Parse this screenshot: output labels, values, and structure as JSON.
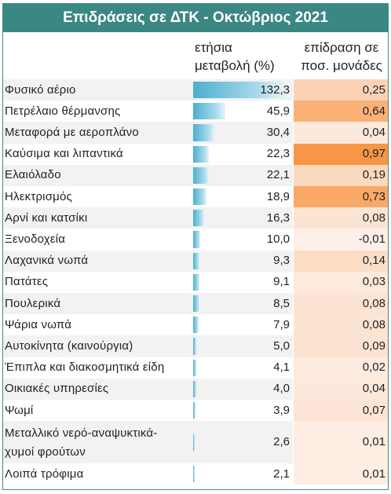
{
  "title": "Επιδράσεις σε ΔΤΚ - Οκτώβριος 2021",
  "columns": {
    "change": [
      "ετήσια",
      "μεταβολή (%)"
    ],
    "impact": [
      "επίδραση σε",
      "ποσ. μονάδες"
    ]
  },
  "colors": {
    "title_bg": "#3a8783",
    "bar": "#4bb0cf",
    "impact_low": "#fdeee4",
    "impact_high": "#f79646"
  },
  "chart_data": {
    "type": "table",
    "title": "Επιδράσεις σε ΔΤΚ - Οκτώβριος 2021",
    "columns": [
      "ετήσια μεταβολή (%)",
      "επίδραση σε ποσ. μονάδες"
    ],
    "rows": [
      {
        "label": "Φυσικό αέριο",
        "change": 132.3,
        "change_text": "132,3",
        "impact": 0.25,
        "impact_text": "0,25"
      },
      {
        "label": "Πετρέλαιο θέρμανσης",
        "change": 45.9,
        "change_text": "45,9",
        "impact": 0.64,
        "impact_text": "0,64"
      },
      {
        "label": "Μεταφορά  με αεροπλάνο",
        "change": 30.4,
        "change_text": "30,4",
        "impact": 0.04,
        "impact_text": "0,04"
      },
      {
        "label": "Καύσιμα και λιπαντικά",
        "change": 22.3,
        "change_text": "22,3",
        "impact": 0.97,
        "impact_text": "0,97"
      },
      {
        "label": "Ελαιόλαδο",
        "change": 22.1,
        "change_text": "22,1",
        "impact": 0.19,
        "impact_text": "0,19"
      },
      {
        "label": "Ηλεκτρισμός",
        "change": 18.9,
        "change_text": "18,9",
        "impact": 0.73,
        "impact_text": "0,73"
      },
      {
        "label": "Αρνί και κατσίκι",
        "change": 16.3,
        "change_text": "16,3",
        "impact": 0.08,
        "impact_text": "0,08"
      },
      {
        "label": "Ξενοδοχεία",
        "change": 10.0,
        "change_text": "10,0",
        "impact": -0.01,
        "impact_text": "-0,01"
      },
      {
        "label": "Λαχανικά νωπά",
        "change": 9.3,
        "change_text": "9,3",
        "impact": 0.14,
        "impact_text": "0,14"
      },
      {
        "label": "Πατάτες",
        "change": 9.1,
        "change_text": "9,1",
        "impact": 0.03,
        "impact_text": "0,03"
      },
      {
        "label": "Πουλερικά",
        "change": 8.5,
        "change_text": "8,5",
        "impact": 0.08,
        "impact_text": "0,08"
      },
      {
        "label": "Ψάρια νωπά",
        "change": 7.9,
        "change_text": "7,9",
        "impact": 0.08,
        "impact_text": "0,08"
      },
      {
        "label": "Αυτοκίνητα (καινούργια)",
        "change": 5.0,
        "change_text": "5,0",
        "impact": 0.09,
        "impact_text": "0,09"
      },
      {
        "label": "Έπιπλα και διακοσμητικά είδη",
        "change": 4.1,
        "change_text": "4,1",
        "impact": 0.02,
        "impact_text": "0,02"
      },
      {
        "label": "Οικιακές υπηρεσίες",
        "change": 4.0,
        "change_text": "4,0",
        "impact": 0.04,
        "impact_text": "0,04"
      },
      {
        "label": "Ψωμί",
        "change": 3.9,
        "change_text": "3,9",
        "impact": 0.07,
        "impact_text": "0,07"
      },
      {
        "label": "Μεταλλικό νερό-αναψυκτικά-χυμοί φρούτων",
        "label_lines": [
          "Μεταλλικό νερό-αναψυκτικά-",
          "χυμοί φρούτων"
        ],
        "change": 2.6,
        "change_text": "2,6",
        "impact": 0.01,
        "impact_text": "0,01"
      },
      {
        "label": "Λοιπά τρόφιμα",
        "change": 2.1,
        "change_text": "2,1",
        "impact": 0.01,
        "impact_text": "0,01"
      }
    ]
  }
}
